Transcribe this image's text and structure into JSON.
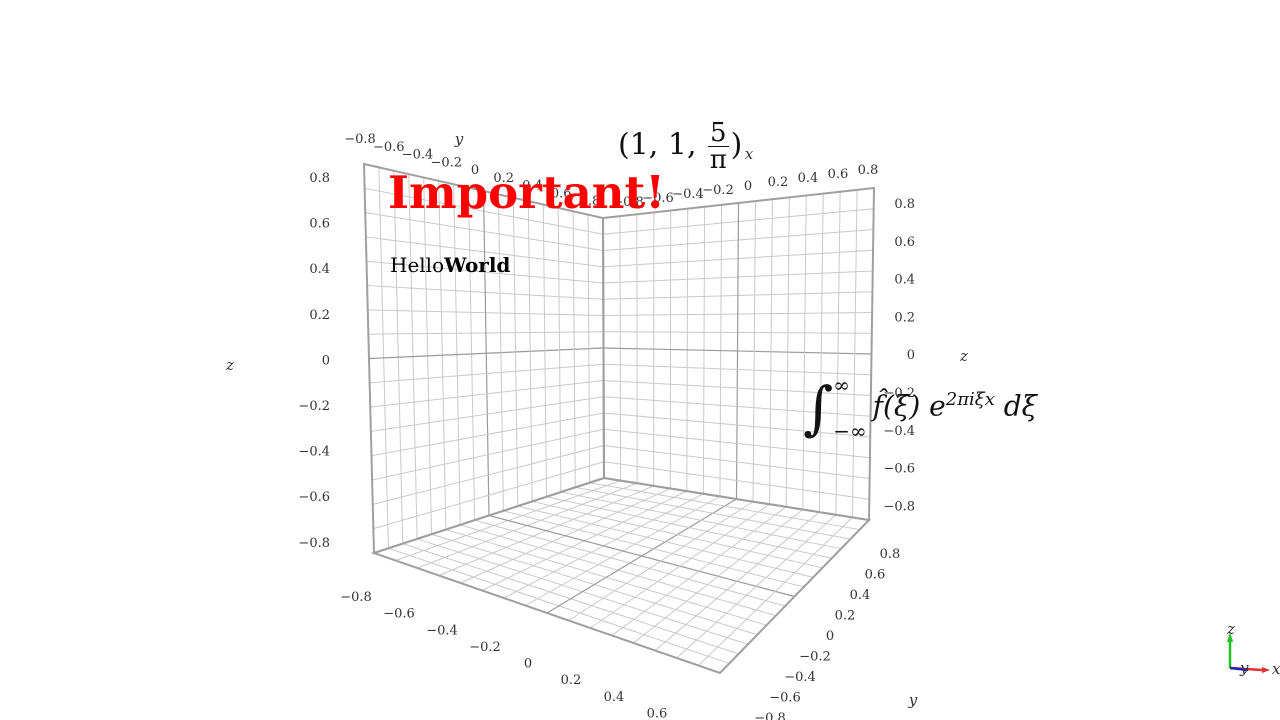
{
  "scene": {
    "axis_names": {
      "x": "x",
      "y": "y",
      "z": "z"
    },
    "tick_range": [
      -0.8,
      0.8
    ],
    "tick_step": 0.2,
    "x_ticks": [
      "−0.8",
      "−0.6",
      "−0.4",
      "−0.2",
      "0",
      "0.2",
      "0.4",
      "0.6",
      "0.8"
    ],
    "y_ticks": [
      "−0.8",
      "−0.6",
      "−0.4",
      "−0.2",
      "0",
      "0.2",
      "0.4",
      "0.6",
      "0.8"
    ],
    "z_ticks": [
      "−0.8",
      "−0.6",
      "−0.4",
      "−0.2",
      "0",
      "0.2",
      "0.4",
      "0.6",
      "0.8"
    ]
  },
  "annotations": {
    "important": "Important!",
    "hello": "Hello",
    "world": "World",
    "point": {
      "open": "(1, 1, ",
      "numerator": "5",
      "denominator": "π",
      "close": ")"
    },
    "integral": {
      "upper": "∞",
      "lower": "−∞",
      "body": "f̂(ξ) e",
      "exponent": "2πiξx",
      "tail": " dξ"
    }
  },
  "orientation_widget": {
    "x": "x",
    "y": "y",
    "z": "z",
    "colors": {
      "x": "#e03030",
      "y": "#2020c0",
      "z": "#20c020"
    }
  }
}
